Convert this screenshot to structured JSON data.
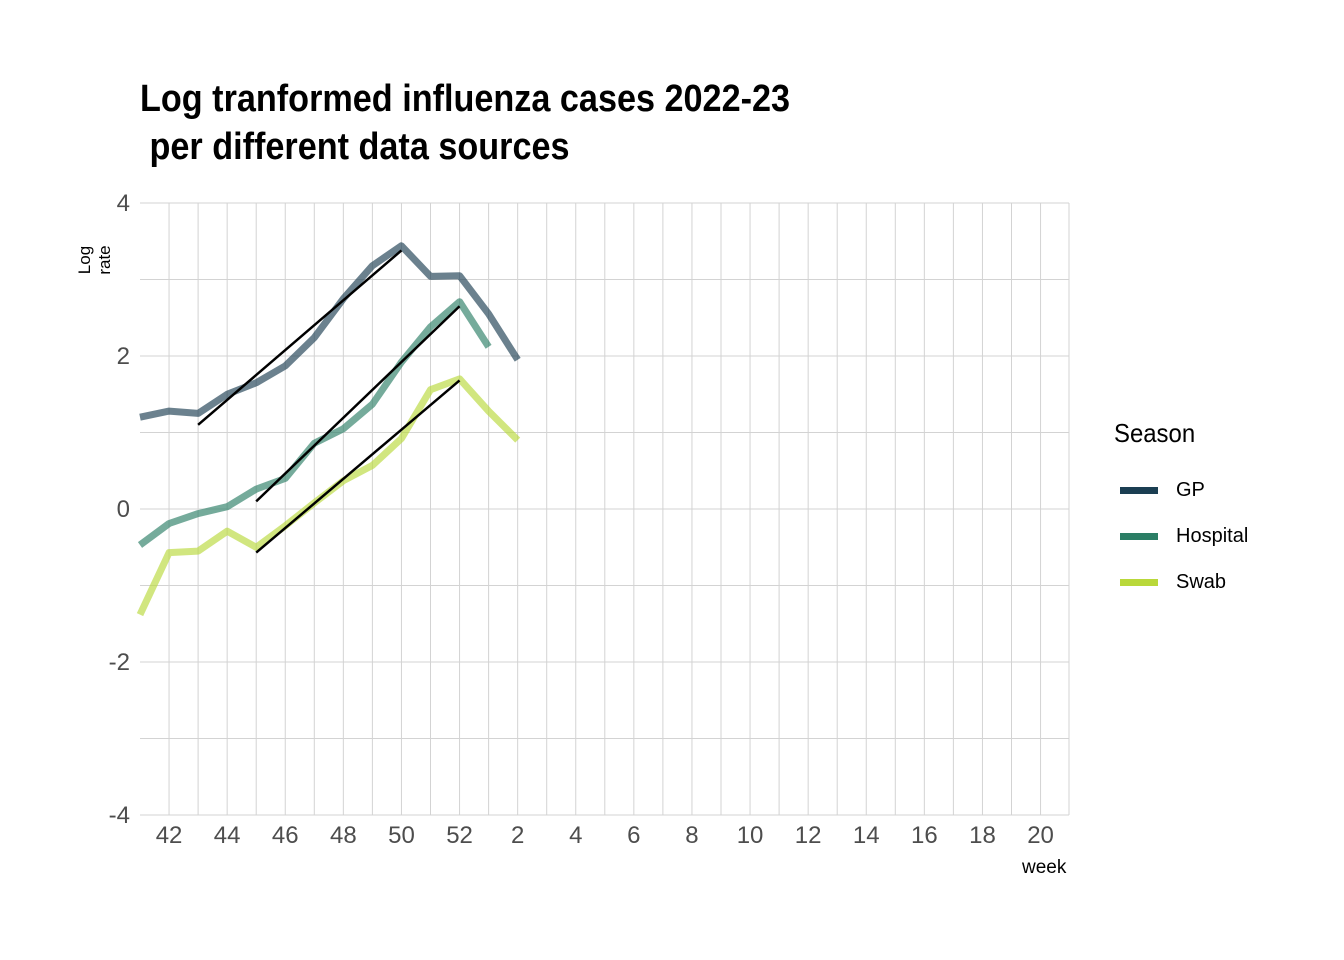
{
  "chart_data": {
    "type": "line",
    "title_lines": [
      "Log tranformed influenza cases 2022-23",
      " per different data sources"
    ],
    "xlabel": "week",
    "ylabel": "Log rate",
    "ylim": [
      -4,
      4
    ],
    "y_ticks": [
      "4",
      "2",
      "0",
      "-2",
      "-4"
    ],
    "x_tick_labels": [
      "42",
      "44",
      "46",
      "48",
      "50",
      "52",
      "2",
      "4",
      "6",
      "8",
      "10",
      "12",
      "14",
      "16",
      "18",
      "20"
    ],
    "x_weeks_order": [
      "41",
      "42",
      "43",
      "44",
      "45",
      "46",
      "47",
      "48",
      "49",
      "50",
      "51",
      "52",
      "1",
      "2",
      "3",
      "4",
      "5",
      "6",
      "7",
      "8",
      "9",
      "10",
      "11",
      "12",
      "13",
      "14",
      "15",
      "16",
      "17",
      "18",
      "19",
      "20",
      "21"
    ],
    "grid": true,
    "legend": {
      "title": "Season",
      "position": "right"
    },
    "series": [
      {
        "name": "GP",
        "color": "#1b3e52",
        "x": [
          "41",
          "42",
          "43",
          "44",
          "45",
          "46",
          "47",
          "48",
          "49",
          "50",
          "51",
          "52",
          "1",
          "2"
        ],
        "values": [
          1.2,
          1.28,
          1.25,
          1.5,
          1.65,
          1.87,
          2.24,
          2.75,
          3.18,
          3.44,
          3.04,
          3.05,
          2.55,
          1.95
        ],
        "trend": {
          "x": [
            "43",
            "50"
          ],
          "values": [
            1.1,
            3.38
          ]
        }
      },
      {
        "name": "Hospital",
        "color": "#2b7e65",
        "x": [
          "41",
          "42",
          "43",
          "44",
          "45",
          "46",
          "47",
          "48",
          "49",
          "50",
          "51",
          "52",
          "1"
        ],
        "values": [
          -0.47,
          -0.19,
          -0.06,
          0.03,
          0.26,
          0.4,
          0.86,
          1.05,
          1.37,
          1.92,
          2.38,
          2.71,
          2.12
        ],
        "trend": {
          "x": [
            "45",
            "52"
          ],
          "values": [
            0.1,
            2.65
          ]
        }
      },
      {
        "name": "Swab",
        "color": "#b9d83a",
        "x": [
          "41",
          "42",
          "43",
          "44",
          "45",
          "46",
          "47",
          "48",
          "49",
          "50",
          "51",
          "52",
          "1",
          "2"
        ],
        "values": [
          -1.38,
          -0.57,
          -0.55,
          -0.29,
          -0.5,
          -0.22,
          0.08,
          0.37,
          0.57,
          0.92,
          1.56,
          1.7,
          1.28,
          0.9
        ],
        "trend": {
          "x": [
            "45",
            "52"
          ],
          "values": [
            -0.57,
            1.68
          ]
        }
      }
    ]
  }
}
